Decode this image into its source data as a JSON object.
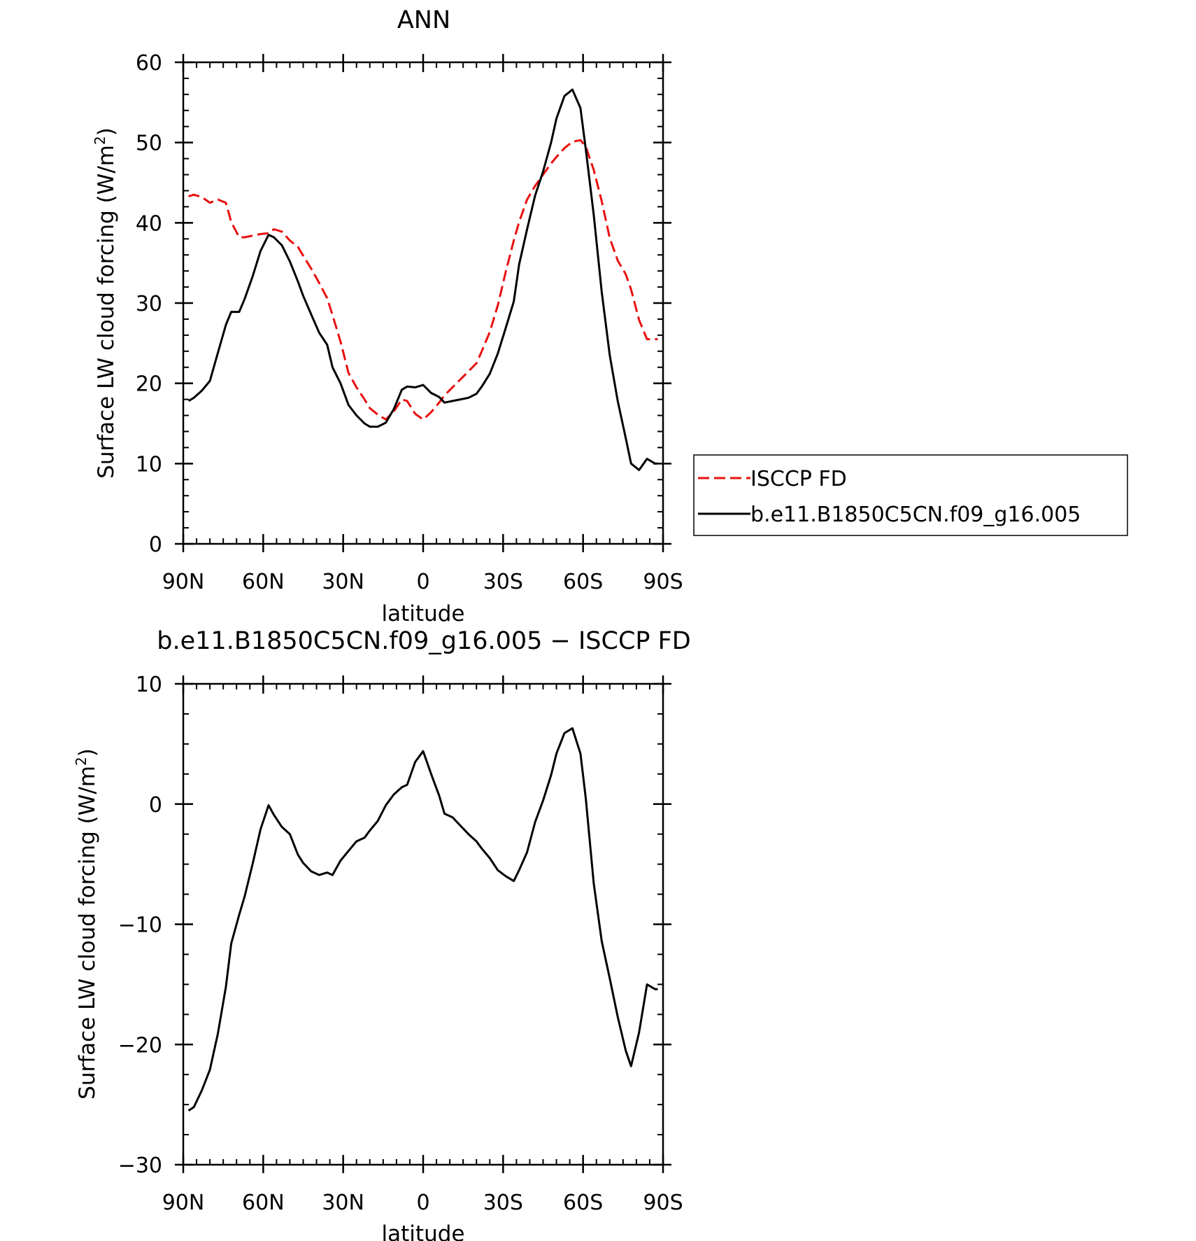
{
  "chart_data": [
    {
      "type": "line",
      "title": "ANN",
      "xlabel": "latitude",
      "ylabel": "Surface LW cloud forcing (W/m²)",
      "ylabel_main": "Surface LW cloud forcing (W/m",
      "ylabel_sup": "2",
      "ylabel_end": ")",
      "x_ticks": [
        {
          "value": -90,
          "label": "90N"
        },
        {
          "value": -60,
          "label": "60N"
        },
        {
          "value": -30,
          "label": "30N"
        },
        {
          "value": 0,
          "label": "0"
        },
        {
          "value": 30,
          "label": "30S"
        },
        {
          "value": 60,
          "label": "60S"
        },
        {
          "value": 90,
          "label": "90S"
        }
      ],
      "y_ticks": [
        0,
        10,
        20,
        30,
        40,
        50,
        60
      ],
      "ylim": [
        0,
        60
      ],
      "xlim": [
        -90,
        90
      ],
      "grid": false,
      "legend_position": "right",
      "x": [
        -88,
        -86,
        -83,
        -80,
        -77,
        -74,
        -72,
        -69,
        -67,
        -64,
        -61,
        -58,
        -56,
        -53,
        -50,
        -47,
        -45,
        -42,
        -39,
        -36,
        -34,
        -31,
        -28,
        -25,
        -22,
        -20,
        -17,
        -14,
        -11,
        -8,
        -6,
        -3,
        0,
        3,
        6,
        8,
        11,
        14,
        17,
        20,
        22,
        25,
        28,
        31,
        34,
        36,
        39,
        42,
        45,
        48,
        50,
        53,
        56,
        59,
        61,
        64,
        67,
        70,
        73,
        76,
        78,
        81,
        84,
        87,
        88
      ],
      "series": [
        {
          "name": "ISCCP FD",
          "color": "#e8100f",
          "style": "dashed",
          "values": [
            43.3,
            43.5,
            43.2,
            42.5,
            42.9,
            42.5,
            40.1,
            38.2,
            38.2,
            38.4,
            38.6,
            38.7,
            39.2,
            38.9,
            37.8,
            37.0,
            35.9,
            34.3,
            32.5,
            30.6,
            28.5,
            25.2,
            21.3,
            19.5,
            18.0,
            16.9,
            16.1,
            15.5,
            16.5,
            18.0,
            17.8,
            16.2,
            15.5,
            16.4,
            17.6,
            18.5,
            19.5,
            20.5,
            21.5,
            22.5,
            24.0,
            26.4,
            29.7,
            33.9,
            37.8,
            40.1,
            42.9,
            44.6,
            46.0,
            47.4,
            48.2,
            49.3,
            50.1,
            50.3,
            49.5,
            46.6,
            42.7,
            38.1,
            35.3,
            33.6,
            31.7,
            27.9,
            25.5,
            25.5,
            25.5
          ]
        },
        {
          "name": "b.e11.B1850C5CN.f09_g16.005",
          "color": "#000000",
          "style": "solid",
          "values": [
            17.8,
            18.2,
            19.1,
            20.3,
            23.8,
            27.3,
            28.9,
            28.9,
            30.5,
            33.3,
            36.5,
            38.5,
            38.2,
            37.2,
            35.2,
            32.7,
            30.9,
            28.6,
            26.3,
            24.8,
            22.0,
            20.0,
            17.3,
            16.0,
            15.0,
            14.6,
            14.6,
            15.1,
            16.8,
            19.2,
            19.6,
            19.5,
            19.8,
            18.8,
            18.3,
            17.6,
            17.8,
            18.0,
            18.2,
            18.7,
            19.6,
            21.2,
            23.7,
            26.9,
            30.2,
            34.8,
            39.2,
            43.4,
            46.4,
            50.0,
            53.0,
            55.8,
            56.6,
            54.3,
            49.2,
            41.0,
            31.4,
            23.5,
            17.8,
            13.2,
            10.0,
            9.2,
            10.6,
            10.0,
            10.0
          ]
        }
      ]
    },
    {
      "type": "line",
      "title": "b.e11.B1850C5CN.f09_g16.005 − ISCCP FD",
      "xlabel": "latitude",
      "ylabel": "Surface LW cloud forcing (W/m²)",
      "ylabel_main": "Surface LW cloud forcing (W/m",
      "ylabel_sup": "2",
      "ylabel_end": ")",
      "x_ticks": [
        {
          "value": -90,
          "label": "90N"
        },
        {
          "value": -60,
          "label": "60N"
        },
        {
          "value": -30,
          "label": "30N"
        },
        {
          "value": 0,
          "label": "0"
        },
        {
          "value": 30,
          "label": "30S"
        },
        {
          "value": 60,
          "label": "60S"
        },
        {
          "value": 90,
          "label": "90S"
        }
      ],
      "y_ticks": [
        -30,
        -20,
        -10,
        0,
        10
      ],
      "y_tick_labels": [
        "−30",
        "−20",
        "−10",
        "0",
        "10"
      ],
      "ylim": [
        -30,
        10
      ],
      "xlim": [
        -90,
        90
      ],
      "grid": false,
      "x": [
        -88,
        -86,
        -83,
        -80,
        -77,
        -74,
        -72,
        -69,
        -67,
        -64,
        -61,
        -58,
        -56,
        -53,
        -50,
        -47,
        -45,
        -42,
        -39,
        -36,
        -34,
        -31,
        -28,
        -25,
        -22,
        -20,
        -17,
        -14,
        -11,
        -8,
        -6,
        -3,
        0,
        3,
        6,
        8,
        11,
        14,
        17,
        20,
        22,
        25,
        28,
        31,
        34,
        36,
        39,
        42,
        45,
        48,
        50,
        53,
        56,
        59,
        61,
        64,
        67,
        70,
        73,
        76,
        78,
        81,
        84,
        87,
        88
      ],
      "series": [
        {
          "name": "",
          "color": "#000000",
          "style": "solid",
          "values": [
            -25.5,
            -25.2,
            -23.8,
            -22.1,
            -19.1,
            -15.2,
            -11.6,
            -9.2,
            -7.7,
            -5.0,
            -2.1,
            -0.1,
            -0.9,
            -1.9,
            -2.5,
            -4.2,
            -4.9,
            -5.6,
            -5.9,
            -5.7,
            -5.9,
            -4.7,
            -3.9,
            -3.1,
            -2.8,
            -2.2,
            -1.4,
            -0.1,
            0.8,
            1.4,
            1.6,
            3.5,
            4.4,
            2.5,
            0.7,
            -0.8,
            -1.1,
            -1.8,
            -2.5,
            -3.1,
            -3.7,
            -4.5,
            -5.5,
            -6.0,
            -6.4,
            -5.5,
            -4.0,
            -1.5,
            0.3,
            2.4,
            4.2,
            5.9,
            6.3,
            4.2,
            0.5,
            -6.6,
            -11.4,
            -14.5,
            -17.7,
            -20.5,
            -21.8,
            -19.0,
            -15.0,
            -15.4,
            -15.4
          ]
        }
      ]
    }
  ]
}
